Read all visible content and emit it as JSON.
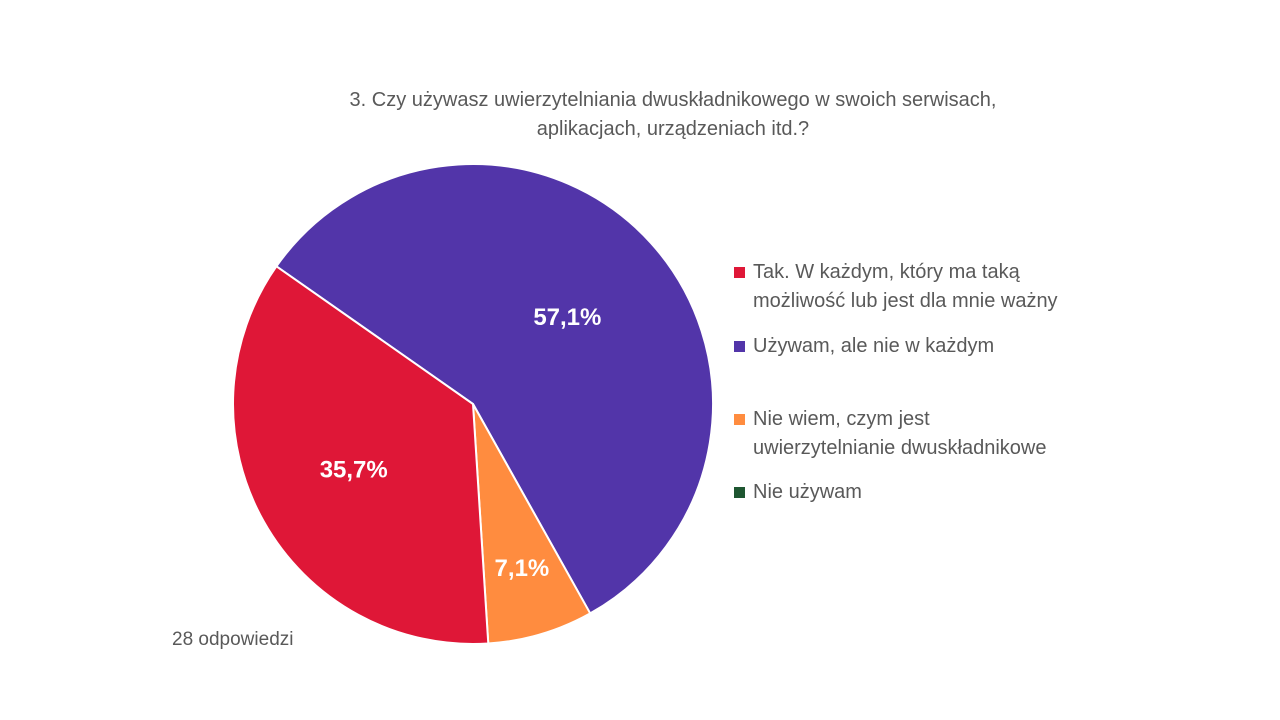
{
  "chart_data": {
    "type": "pie",
    "title_lines": [
      "3. Czy używasz uwierzytelniania dwuskładnikowego w swoich serwisach,",
      "aplikacjach, urządzeniach itd.?"
    ],
    "slices": [
      {
        "name_lines": [
          "Używam, ale nie w każdym"
        ],
        "value": 57.1,
        "label": "57,1%",
        "color": "#5235A9"
      },
      {
        "name_lines": [
          "Nie wiem, czym jest",
          "uwierzytelnianie dwuskładnikowe"
        ],
        "value": 7.1,
        "label": "7,1%",
        "color": "#FF8C3F"
      },
      {
        "name_lines": [
          "Tak. W każdym, który ma taką",
          "możliwość lub jest dla mnie ważny"
        ],
        "value": 35.7,
        "label": "35,7%",
        "color": "#DF1737"
      },
      {
        "name_lines": [
          "Nie używam"
        ],
        "value": 0,
        "label": "",
        "color": "#1E5631"
      }
    ],
    "legend": [
      {
        "lines": [
          "Tak. W każdym, który ma taką",
          "możliwość lub jest dla mnie ważny"
        ],
        "color": "#DF1737"
      },
      {
        "lines": [
          "Używam, ale nie w każdym"
        ],
        "color": "#5235A9"
      },
      {
        "lines": [
          "Nie wiem, czym jest",
          "uwierzytelnianie dwuskładnikowe"
        ],
        "color": "#FF8C3F"
      },
      {
        "lines": [
          "Nie używam"
        ],
        "color": "#1E5631"
      }
    ],
    "legend_position": "right",
    "footnote": "28 odpowiedzi"
  }
}
